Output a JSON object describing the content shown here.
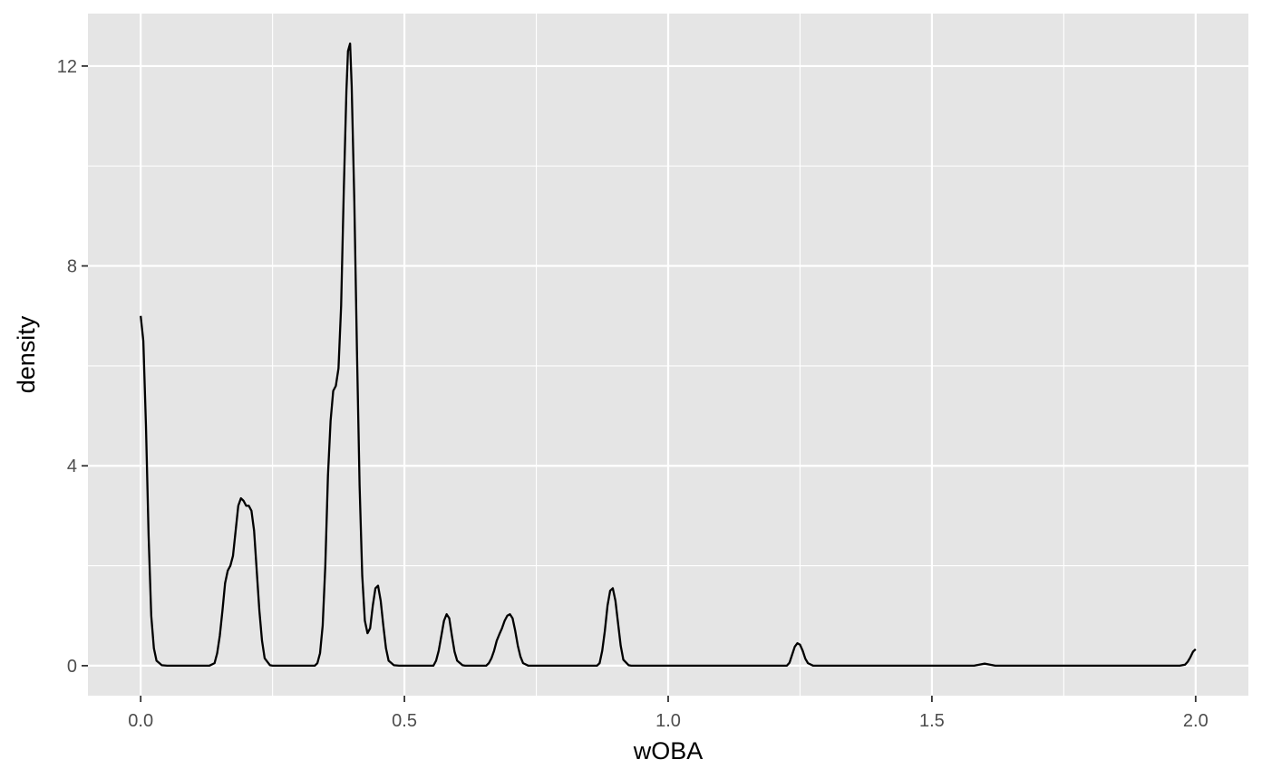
{
  "chart_data": {
    "type": "area",
    "title": "",
    "xlabel": "wOBA",
    "ylabel": "density",
    "xlim": [
      -0.1,
      2.1
    ],
    "ylim": [
      -0.6,
      13.05
    ],
    "x_ticks": [
      0.0,
      0.5,
      1.0,
      1.5,
      2.0
    ],
    "x_tick_labels": [
      "0.0",
      "0.5",
      "1.0",
      "1.5",
      "2.0"
    ],
    "y_ticks": [
      0,
      4,
      8,
      12
    ],
    "y_tick_labels": [
      "0",
      "4",
      "8",
      "12"
    ],
    "grid": true,
    "panel_background": "#e5e5e5",
    "line_color": "#000000",
    "series": [
      {
        "points": [
          [
            0.0,
            7.0
          ],
          [
            0.005,
            6.5
          ],
          [
            0.01,
            4.8
          ],
          [
            0.015,
            2.6
          ],
          [
            0.02,
            1.0
          ],
          [
            0.025,
            0.35
          ],
          [
            0.03,
            0.1
          ],
          [
            0.04,
            0.01
          ],
          [
            0.05,
            0.0
          ],
          [
            0.13,
            0.0
          ],
          [
            0.14,
            0.05
          ],
          [
            0.145,
            0.25
          ],
          [
            0.15,
            0.6
          ],
          [
            0.155,
            1.1
          ],
          [
            0.16,
            1.65
          ],
          [
            0.165,
            1.9
          ],
          [
            0.17,
            2.0
          ],
          [
            0.175,
            2.2
          ],
          [
            0.18,
            2.7
          ],
          [
            0.185,
            3.2
          ],
          [
            0.19,
            3.35
          ],
          [
            0.195,
            3.3
          ],
          [
            0.2,
            3.2
          ],
          [
            0.205,
            3.2
          ],
          [
            0.21,
            3.1
          ],
          [
            0.215,
            2.7
          ],
          [
            0.22,
            1.9
          ],
          [
            0.225,
            1.1
          ],
          [
            0.23,
            0.5
          ],
          [
            0.235,
            0.15
          ],
          [
            0.245,
            0.01
          ],
          [
            0.25,
            0.0
          ],
          [
            0.33,
            0.0
          ],
          [
            0.335,
            0.05
          ],
          [
            0.34,
            0.25
          ],
          [
            0.345,
            0.8
          ],
          [
            0.35,
            2.0
          ],
          [
            0.355,
            3.8
          ],
          [
            0.36,
            4.9
          ],
          [
            0.365,
            5.5
          ],
          [
            0.37,
            5.6
          ],
          [
            0.375,
            5.95
          ],
          [
            0.38,
            7.2
          ],
          [
            0.385,
            9.5
          ],
          [
            0.39,
            11.5
          ],
          [
            0.393,
            12.3
          ],
          [
            0.397,
            12.45
          ],
          [
            0.4,
            11.6
          ],
          [
            0.405,
            9.3
          ],
          [
            0.41,
            6.3
          ],
          [
            0.415,
            3.6
          ],
          [
            0.42,
            1.8
          ],
          [
            0.425,
            0.9
          ],
          [
            0.43,
            0.65
          ],
          [
            0.435,
            0.75
          ],
          [
            0.44,
            1.2
          ],
          [
            0.445,
            1.55
          ],
          [
            0.45,
            1.6
          ],
          [
            0.455,
            1.3
          ],
          [
            0.46,
            0.8
          ],
          [
            0.465,
            0.35
          ],
          [
            0.47,
            0.1
          ],
          [
            0.48,
            0.01
          ],
          [
            0.49,
            0.0
          ],
          [
            0.555,
            0.0
          ],
          [
            0.56,
            0.1
          ],
          [
            0.565,
            0.3
          ],
          [
            0.57,
            0.6
          ],
          [
            0.575,
            0.9
          ],
          [
            0.58,
            1.03
          ],
          [
            0.585,
            0.95
          ],
          [
            0.59,
            0.6
          ],
          [
            0.595,
            0.28
          ],
          [
            0.6,
            0.1
          ],
          [
            0.61,
            0.01
          ],
          [
            0.615,
            0.0
          ],
          [
            0.655,
            0.0
          ],
          [
            0.66,
            0.05
          ],
          [
            0.665,
            0.15
          ],
          [
            0.67,
            0.3
          ],
          [
            0.675,
            0.5
          ],
          [
            0.68,
            0.63
          ],
          [
            0.685,
            0.75
          ],
          [
            0.69,
            0.9
          ],
          [
            0.695,
            1.0
          ],
          [
            0.7,
            1.03
          ],
          [
            0.705,
            0.95
          ],
          [
            0.71,
            0.7
          ],
          [
            0.715,
            0.4
          ],
          [
            0.72,
            0.18
          ],
          [
            0.725,
            0.05
          ],
          [
            0.735,
            0.0
          ],
          [
            0.865,
            0.0
          ],
          [
            0.87,
            0.05
          ],
          [
            0.875,
            0.3
          ],
          [
            0.88,
            0.7
          ],
          [
            0.885,
            1.2
          ],
          [
            0.89,
            1.5
          ],
          [
            0.895,
            1.55
          ],
          [
            0.9,
            1.3
          ],
          [
            0.905,
            0.85
          ],
          [
            0.91,
            0.4
          ],
          [
            0.915,
            0.12
          ],
          [
            0.925,
            0.01
          ],
          [
            0.93,
            0.0
          ],
          [
            1.225,
            0.0
          ],
          [
            1.23,
            0.06
          ],
          [
            1.235,
            0.22
          ],
          [
            1.24,
            0.38
          ],
          [
            1.245,
            0.45
          ],
          [
            1.25,
            0.42
          ],
          [
            1.255,
            0.3
          ],
          [
            1.26,
            0.14
          ],
          [
            1.265,
            0.05
          ],
          [
            1.275,
            0.0
          ],
          [
            1.58,
            0.0
          ],
          [
            1.59,
            0.02
          ],
          [
            1.6,
            0.04
          ],
          [
            1.61,
            0.02
          ],
          [
            1.62,
            0.0
          ],
          [
            1.97,
            0.0
          ],
          [
            1.98,
            0.02
          ],
          [
            1.985,
            0.08
          ],
          [
            1.99,
            0.17
          ],
          [
            1.995,
            0.28
          ],
          [
            2.0,
            0.33
          ]
        ]
      }
    ]
  }
}
